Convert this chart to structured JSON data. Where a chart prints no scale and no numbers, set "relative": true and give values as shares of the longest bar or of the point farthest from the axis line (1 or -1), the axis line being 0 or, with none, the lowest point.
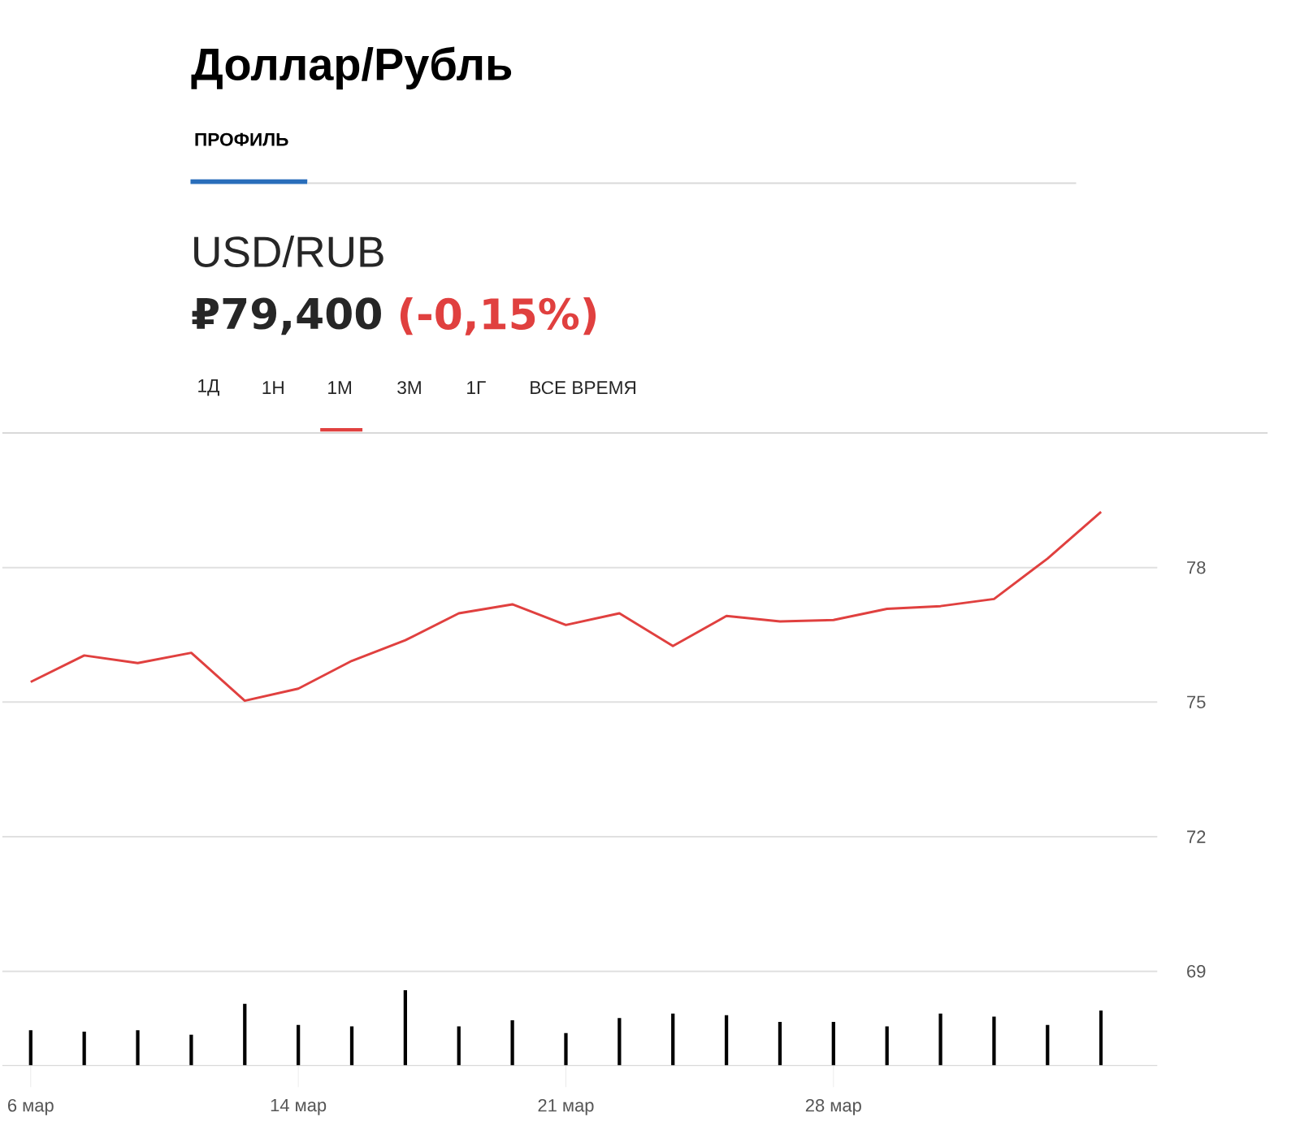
{
  "chart_data": [
    {
      "type": "line",
      "title": "Доллар/Рубль",
      "annotations": [
        "ПРОФИЛЬ",
        "USD/RUB",
        "₽79,400",
        "(-0,15%)",
        "1Д",
        "1Н",
        "1М",
        "3М",
        "1Г",
        "ВСЕ ВРЕМЯ"
      ],
      "categories": [
        "6 мар",
        null,
        null,
        null,
        null,
        "14 мар",
        null,
        null,
        null,
        null,
        "21 мар",
        null,
        null,
        null,
        null,
        "28 мар",
        null,
        null,
        null,
        null,
        null
      ],
      "ylim": [
        66.9,
        81
      ],
      "yticks": [
        69,
        72,
        75,
        78
      ],
      "grid": "y",
      "marker": "none",
      "line_style": "solid",
      "series": [
        {
          "color": "#e0403f",
          "values": [
            75.45,
            76.04,
            75.87,
            76.1,
            75.03,
            75.3,
            75.92,
            76.38,
            76.98,
            77.18,
            76.72,
            76.98,
            76.25,
            76.92,
            76.8,
            76.83,
            77.08,
            77.14,
            77.3,
            78.2,
            79.24
          ]
        }
      ]
    },
    {
      "type": "bar",
      "relative": true,
      "categories": [
        null,
        null,
        null,
        null,
        null,
        null,
        null,
        null,
        null,
        null,
        null,
        null,
        null,
        null,
        null,
        null,
        null,
        null,
        null,
        null,
        null
      ],
      "series": [
        {
          "color": "#000000",
          "values": [
            0.47,
            0.45,
            0.47,
            0.41,
            0.82,
            0.54,
            0.52,
            1,
            0.52,
            0.6,
            0.43,
            0.63,
            0.69,
            0.67,
            0.58,
            0.58,
            0.52,
            0.69,
            0.65,
            0.54,
            0.73
          ]
        }
      ]
    }
  ]
}
